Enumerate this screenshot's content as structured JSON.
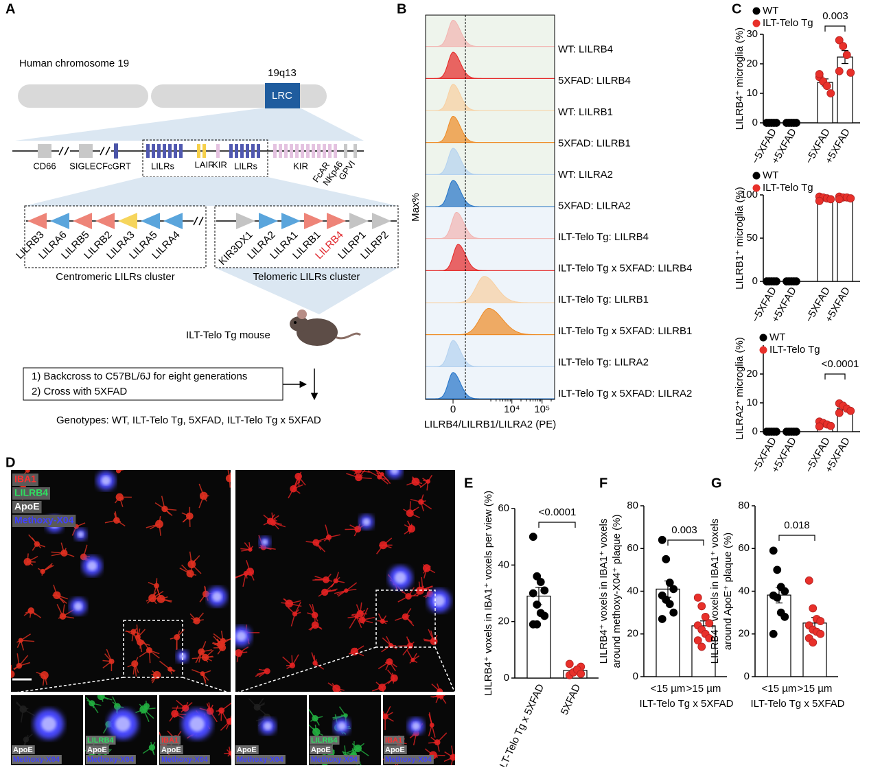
{
  "panel_a": {
    "label": "A",
    "chromosome": "Human chromosome 19",
    "band": "19q13",
    "region": "LRC",
    "map_labels": [
      "CD66",
      "SIGLEC",
      "FcGRT",
      "LILRs",
      "LAIR",
      "KIR",
      "LILRs",
      "KIR",
      "FcAR",
      "NKp46",
      "GPVI"
    ],
    "centromeric": {
      "label": "Centromeric LILRs cluster",
      "direction": "left",
      "genes": [
        {
          "name": "LILRB3",
          "color": "#ee8478"
        },
        {
          "name": "LILRA6",
          "color": "#5aa5dc"
        },
        {
          "name": "LILRB5",
          "color": "#ee8478"
        },
        {
          "name": "LILRB2",
          "color": "#ee8478"
        },
        {
          "name": "LILRA3",
          "color": "#f6d55c"
        },
        {
          "name": "LILRA5",
          "color": "#5aa5dc"
        },
        {
          "name": "LILRA4",
          "color": "#5aa5dc"
        }
      ]
    },
    "telomeric": {
      "label": "Telomeric LILRs cluster",
      "direction": "right",
      "genes": [
        {
          "name": "KIR3DX1",
          "color": "#c4c4c4"
        },
        {
          "name": "LILRA2",
          "color": "#5aa5dc"
        },
        {
          "name": "LILRA1",
          "color": "#5aa5dc"
        },
        {
          "name": "LILRB1",
          "color": "#ee8478"
        },
        {
          "name": "LILRB4",
          "color": "#ee8478",
          "label_color": "#e0242a"
        },
        {
          "name": "LILRP1",
          "color": "#c4c4c4"
        },
        {
          "name": "LILRP2",
          "color": "#c4c4c4"
        }
      ]
    },
    "mouse": "ILT-Telo Tg mouse",
    "steps": [
      "1) Backcross to C57BL/6J for eight generations",
      "2) Cross with 5XFAD"
    ],
    "genotypes": "Genotypes: WT, ILT-Telo Tg, 5XFAD, ILT-Telo Tg x 5XFAD"
  },
  "panel_b": {
    "label": "B",
    "ylabel": "Max%",
    "xlabel": "LILRB4/LILRB1/LILRA2 (PE)",
    "xscale": "biexponential",
    "linear_width": 225,
    "xlim": [
      -900,
      260000
    ],
    "xticks": [
      0,
      {
        "value": 10000,
        "label": "10⁴"
      },
      {
        "value": 100000,
        "label": "10⁵"
      }
    ],
    "gate": 245,
    "rows": [
      {
        "label": "WT: LILRB4",
        "color": "#f2b3b0",
        "peak": 0,
        "background": "#eef4ec"
      },
      {
        "label": "5XFAD: LILRB4",
        "color": "#e52626",
        "peak": 0,
        "background": "#eef4ec"
      },
      {
        "label": "WT: LILRB1",
        "color": "#f8cfa0",
        "peak": 0,
        "background": "#eef4ec"
      },
      {
        "label": "5XFAD: LILRB1",
        "color": "#ee8a24",
        "peak": 0,
        "background": "#eef4ec"
      },
      {
        "label": "WT: LILRA2",
        "color": "#b3d1ef",
        "peak": 0,
        "background": "#eef4ec"
      },
      {
        "label": "5XFAD: LILRA2",
        "color": "#2272c8",
        "peak": 0,
        "background": "#eef4ec"
      },
      {
        "label": "ILT-Telo Tg: LILRB4",
        "color": "#f2b3b0",
        "peak": 60,
        "background": "#eef4fa"
      },
      {
        "label": "ILT-Telo Tg x 5XFAD: LILRB4",
        "color": "#e52626",
        "peak": 90,
        "background": "#eef4fa"
      },
      {
        "label": "ILT-Telo Tg: LILRB1",
        "color": "#f8cfa0",
        "peak": 1200,
        "background": "#eef4fa"
      },
      {
        "label": "ILT-Telo Tg x 5XFAD: LILRB1",
        "color": "#ee8a24",
        "peak": 1700,
        "background": "#eef4fa"
      },
      {
        "label": "ILT-Telo Tg: LILRA2",
        "color": "#b3d1ef",
        "peak": 0,
        "background": "#eef4fa"
      },
      {
        "label": "ILT-Telo Tg x 5XFAD: LILRA2",
        "color": "#2272c8",
        "peak": 0,
        "background": "#eef4fa"
      }
    ]
  },
  "panel_d": {
    "label": "D",
    "channels": [
      {
        "name": "IBA1",
        "color": "#ff3030"
      },
      {
        "name": "LILRB4",
        "color": "#2ee060"
      },
      {
        "name": "ApoE",
        "color": "#ffffff"
      },
      {
        "name": "Methoxy-X04",
        "color": "#4040ff"
      }
    ],
    "insets": [
      [
        "ApoE",
        "Methoxy-X04"
      ],
      [
        "LILRB4",
        "ApoE",
        "Methoxy-X04"
      ],
      [
        "IBA1",
        "ApoE",
        "Methoxy-X04"
      ],
      [
        "ApoE",
        "Methoxy-X04"
      ],
      [
        "LILRB4",
        "ApoE",
        "Methoxy-X04"
      ],
      [
        "IBA1",
        "ApoE",
        "Methoxy-X04"
      ]
    ]
  },
  "chart_data": [
    {
      "type": "dot_bar",
      "panel_label": "C",
      "ylabel": "LILRB4⁺ microglia (%)",
      "ylim": [
        0,
        30
      ],
      "yticks": [
        0,
        10,
        20,
        30
      ],
      "annotation": "0.003",
      "series": [
        {
          "name": "WT",
          "color": "#000000",
          "categories": [
            "−5XFAD",
            "+5XFAD"
          ],
          "values": [
            [
              0,
              0,
              0,
              0,
              0
            ],
            [
              0,
              0,
              0,
              0,
              0
            ]
          ],
          "means": [
            0,
            0
          ],
          "sems": [
            0,
            0
          ]
        },
        {
          "name": "ILT-Telo Tg",
          "color": "#e8302a",
          "categories": [
            "−5XFAD",
            "+5XFAD"
          ],
          "values": [
            [
              15.5,
              14,
              12.5,
              10,
              16.5
            ],
            [
              28,
              26,
              23,
              17,
              17.5
            ]
          ],
          "means": [
            13.7,
            22.3
          ],
          "sems": [
            1.2,
            2.2
          ]
        }
      ]
    },
    {
      "type": "dot_bar",
      "ylabel": "LILRB1⁺ microglia (%)",
      "ylim": [
        0,
        100
      ],
      "yticks": [
        0,
        50,
        100
      ],
      "series": [
        {
          "name": "WT",
          "color": "#000000",
          "categories": [
            "−5XFAD",
            "+5XFAD"
          ],
          "values": [
            [
              0,
              0,
              0,
              0,
              0
            ],
            [
              0,
              0,
              0,
              0,
              0
            ]
          ],
          "means": [
            0,
            0
          ],
          "sems": [
            0,
            0
          ]
        },
        {
          "name": "ILT-Telo Tg",
          "color": "#e8302a",
          "categories": [
            "−5XFAD",
            "+5XFAD"
          ],
          "values": [
            [
              98,
              97,
              96,
              95,
              93
            ],
            [
              98,
              97,
              97,
              96,
              95
            ]
          ],
          "means": [
            95.8,
            96.6
          ],
          "sems": [
            0.9,
            0.5
          ]
        }
      ]
    },
    {
      "type": "dot_bar",
      "ylabel": "LILRA2⁺ microglia (%)",
      "ylim": [
        0,
        30
      ],
      "yticks": [
        0,
        10,
        20
      ],
      "annotation": "<0.0001",
      "series": [
        {
          "name": "WT",
          "color": "#000000",
          "categories": [
            "−5XFAD",
            "+5XFAD"
          ],
          "values": [
            [
              0,
              0,
              0,
              0,
              0
            ],
            [
              0,
              0,
              0,
              0,
              0
            ]
          ],
          "means": [
            0,
            0
          ],
          "sems": [
            0,
            0
          ]
        },
        {
          "name": "ILT-Telo Tg",
          "color": "#e8302a",
          "categories": [
            "−5XFAD",
            "+5XFAD"
          ],
          "values": [
            [
              3.5,
              3,
              2.5,
              2,
              1.8
            ],
            [
              9.8,
              9,
              8,
              7.2,
              6.5
            ]
          ],
          "means": [
            2.6,
            8.1
          ],
          "sems": [
            0.3,
            0.6
          ]
        }
      ]
    },
    {
      "type": "dot_bar",
      "panel_label": "E",
      "ylabel": "LILRB4⁺ voxels in IBA1⁺ voxels per view (%)",
      "ylim": [
        0,
        60
      ],
      "yticks": [
        0,
        20,
        40,
        60
      ],
      "annotation": "<0.0001",
      "series": [
        {
          "color": "#000000",
          "categories": [
            "ILT-Telo Tg x 5XFAD"
          ],
          "values": [
            [
              50,
              36,
              34,
              31,
              30,
              26,
              23,
              22,
              19,
              19
            ]
          ],
          "means": [
            29
          ],
          "sems": [
            3.1
          ]
        },
        {
          "color": "#e8302a",
          "categories": [
            "5XFAD"
          ],
          "values": [
            [
              1,
              2,
              3,
              4,
              5,
              2,
              3,
              1.5
            ]
          ],
          "means": [
            2.7
          ],
          "sems": [
            0.5
          ]
        }
      ]
    },
    {
      "type": "dot_bar",
      "panel_label": "F",
      "ylabel": [
        "LILRB4⁺ voxels in IBA1⁺ voxels",
        "around methoxy-X04⁺ plaque (%)"
      ],
      "ylim": [
        0,
        80
      ],
      "yticks": [
        0,
        20,
        40,
        60,
        80
      ],
      "annotation": "0.003",
      "xlabel": "ILT-Telo Tg x 5XFAD",
      "series": [
        {
          "color": "#000000",
          "categories": [
            "<15 µm"
          ],
          "values": [
            [
              64,
              55,
              44,
              41,
              38,
              36,
              34,
              30,
              27
            ]
          ],
          "means": [
            41
          ],
          "sems": [
            3.8
          ]
        },
        {
          "color": "#e8302a",
          "categories": [
            ">15 µm"
          ],
          "values": [
            [
              37,
              33,
              28,
              25,
              24,
              22,
              20,
              18,
              17,
              14
            ]
          ],
          "means": [
            23.8
          ],
          "sems": [
            2.3
          ]
        }
      ]
    },
    {
      "type": "dot_bar",
      "panel_label": "G",
      "ylabel": [
        "LILRB4⁺ voxels in IBA1⁺ voxels",
        "around ApoE⁺ plaque (%)"
      ],
      "ylim": [
        0,
        80
      ],
      "yticks": [
        0,
        20,
        40,
        60,
        80
      ],
      "annotation": "0.018",
      "xlabel": "ILT-Telo Tg x 5XFAD",
      "series": [
        {
          "color": "#000000",
          "categories": [
            "<15 µm"
          ],
          "values": [
            [
              59,
              50,
              42,
              40,
              38,
              37,
              30,
              28,
              20
            ]
          ],
          "means": [
            38.2
          ],
          "sems": [
            3.7
          ]
        },
        {
          "color": "#e8302a",
          "categories": [
            ">15 µm"
          ],
          "values": [
            [
              45,
              32,
              27,
              26,
              24,
              22,
              21,
              20,
              18,
              16
            ]
          ],
          "means": [
            25.1
          ],
          "sems": [
            2.6
          ]
        }
      ]
    }
  ]
}
